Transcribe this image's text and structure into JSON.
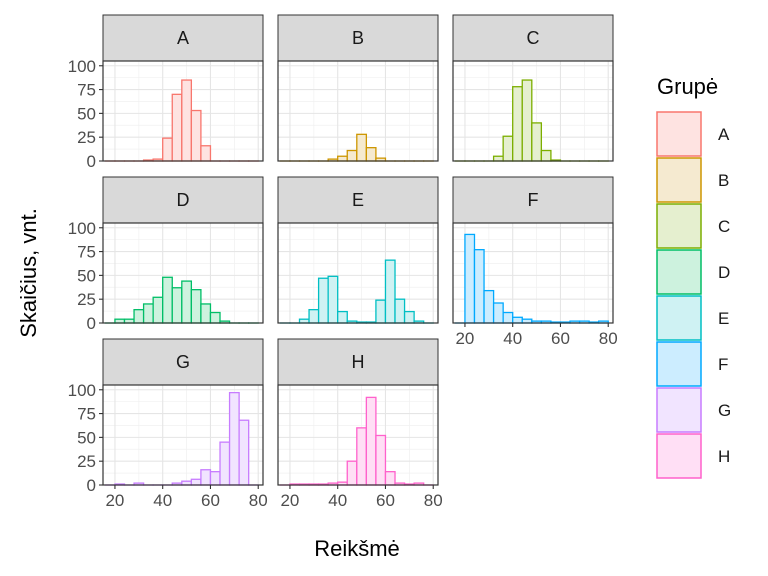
{
  "chart_data": {
    "type": "bar",
    "subtype": "faceted-histogram",
    "xlabel": "Reikšmė",
    "ylabel": "Skaičius, vnt.",
    "xlim": [
      15,
      82
    ],
    "ylim": [
      0,
      105
    ],
    "x_ticks": [
      20,
      40,
      60,
      80
    ],
    "y_ticks": [
      0,
      25,
      50,
      75,
      100
    ],
    "bin_width": 4,
    "bins": [
      18,
      22,
      26,
      30,
      34,
      38,
      42,
      46,
      50,
      54,
      58,
      62,
      66,
      70,
      74,
      78
    ],
    "grid": true,
    "legend": {
      "title": "Grupė",
      "placement": "right",
      "entries": [
        "A",
        "B",
        "C",
        "D",
        "E",
        "F",
        "G",
        "H"
      ]
    },
    "facets": [
      {
        "name": "A",
        "color": "#F8766D",
        "fill": "#FEE3E1",
        "values": [
          0,
          0,
          0,
          0,
          1,
          2,
          24,
          70,
          85,
          53,
          16,
          0,
          0,
          0,
          0,
          0
        ]
      },
      {
        "name": "B",
        "color": "#CD9600",
        "fill": "#F5EAD0",
        "values": [
          0,
          0,
          0,
          0,
          0,
          2,
          5,
          11,
          28,
          14,
          3,
          0,
          0,
          0,
          0,
          0
        ]
      },
      {
        "name": "C",
        "color": "#7CAE00",
        "fill": "#E5EFCF",
        "values": [
          0,
          0,
          0,
          0,
          5,
          26,
          78,
          85,
          40,
          11,
          1,
          0,
          0,
          0,
          0,
          0
        ]
      },
      {
        "name": "D",
        "color": "#00BE67",
        "fill": "#CDF2DE",
        "values": [
          0,
          4,
          4,
          14,
          20,
          27,
          48,
          37,
          44,
          35,
          20,
          11,
          2,
          0,
          0,
          0
        ]
      },
      {
        "name": "E",
        "color": "#00BFC4",
        "fill": "#CFF2F3",
        "values": [
          0,
          0,
          4,
          14,
          47,
          49,
          12,
          2,
          1,
          1,
          24,
          66,
          25,
          12,
          2,
          0
        ]
      },
      {
        "name": "F",
        "color": "#00A9FF",
        "fill": "#CCEDFF",
        "values": [
          0,
          93,
          77,
          34,
          21,
          11,
          6,
          4,
          2,
          2,
          1,
          1,
          2,
          2,
          1,
          2
        ]
      },
      {
        "name": "G",
        "color": "#C77CFF",
        "fill": "#F1E4FF",
        "values": [
          0,
          1,
          0,
          2,
          0,
          0,
          0,
          2,
          4,
          6,
          16,
          14,
          45,
          97,
          68,
          0
        ]
      },
      {
        "name": "H",
        "color": "#FF61CC",
        "fill": "#FFDFF5",
        "values": [
          0,
          1,
          1,
          1,
          1,
          2,
          3,
          25,
          60,
          92,
          52,
          14,
          2,
          1,
          2,
          0
        ]
      }
    ]
  }
}
